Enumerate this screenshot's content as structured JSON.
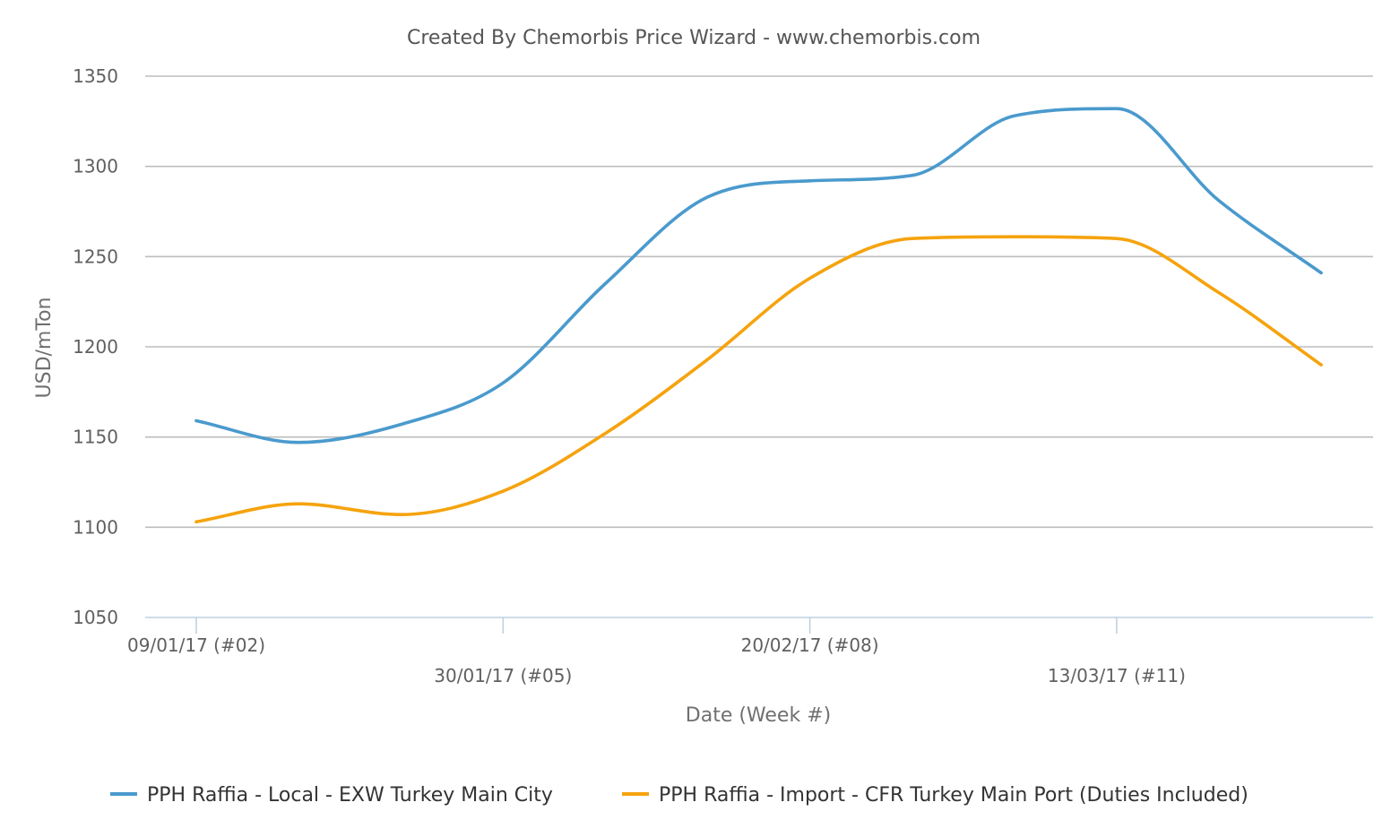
{
  "chart_data": {
    "type": "line",
    "title": "Created By Chemorbis Price Wizard - www.chemorbis.com",
    "xlabel": "Date (Week #)",
    "ylabel": "USD/mTon",
    "ylim": [
      1050,
      1350
    ],
    "yticks": [
      1050,
      1100,
      1150,
      1200,
      1250,
      1300,
      1350
    ],
    "grid": true,
    "legend_position": "bottom",
    "x": [
      "2017-01-09",
      "2017-01-16",
      "2017-01-23",
      "2017-01-30",
      "2017-02-06",
      "2017-02-13",
      "2017-02-20",
      "2017-02-27",
      "2017-03-06",
      "2017-03-13",
      "2017-03-20",
      "2017-03-27"
    ],
    "xtick_labels": [
      {
        "date": "2017-01-09",
        "label": "09/01/17 (#02)",
        "row": 1
      },
      {
        "date": "2017-01-30",
        "label": "30/01/17 (#05)",
        "row": 2
      },
      {
        "date": "2017-02-20",
        "label": "20/02/17 (#08)",
        "row": 1
      },
      {
        "date": "2017-03-13",
        "label": "13/03/17 (#11)",
        "row": 2
      }
    ],
    "series": [
      {
        "name": "PPH Raffia - Local - EXW Turkey Main City",
        "color": "#4a9acd",
        "values": [
          1159,
          1147,
          1157,
          1180,
          1235,
          1283,
          1292,
          1295,
          1328,
          1332,
          1281,
          1241
        ]
      },
      {
        "name": "PPH Raffia - Import - CFR Turkey Main Port (Duties Included)",
        "color": "#f5a30e",
        "values": [
          1103,
          1113,
          1107,
          1120,
          1152,
          1193,
          1238,
          1260,
          1261,
          1260,
          1230,
          1190
        ]
      }
    ]
  }
}
